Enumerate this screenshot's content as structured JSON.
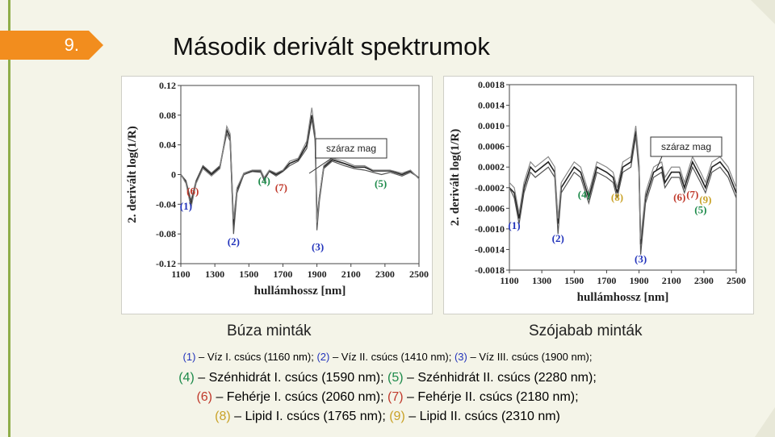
{
  "slide": {
    "number": "9.",
    "title": "Második derivált spektrumok"
  },
  "colors": {
    "accent_orange": "#f28d1e",
    "accent_green": "#8fae4a",
    "label_blue": "#2233bb",
    "label_green": "#1d8a4a",
    "label_red": "#c0392b",
    "label_gold": "#c9a227"
  },
  "captions": {
    "left": "Búza minták",
    "right": "Szójabab minták"
  },
  "legend": {
    "line1": [
      {
        "id": "(1)",
        "text": " – Víz I. csúcs (1160 nm); ",
        "color": "blue"
      },
      {
        "id": "(2)",
        "text": " – Víz II. csúcs (1410 nm); ",
        "color": "blue"
      },
      {
        "id": "(3)",
        "text": " – Víz III. csúcs (1900 nm);",
        "color": "blue"
      }
    ],
    "line2": [
      {
        "id": "(4)",
        "text": " – Szénhidrát I. csúcs (1590 nm); ",
        "color": "green"
      },
      {
        "id": "(5)",
        "text": " – Szénhidrát II. csúcs (2280 nm);",
        "color": "green"
      }
    ],
    "line3": [
      {
        "id": "(6)",
        "text": " – Fehérje I. csúcs (2060 nm); ",
        "color": "red"
      },
      {
        "id": "(7)",
        "text": " – Fehérje II. csúcs (2180 nm);",
        "color": "red"
      }
    ],
    "line4": [
      {
        "id": "(8)",
        "text": " – Lipid I. csúcs (1765 nm); ",
        "color": "gold"
      },
      {
        "id": "(9)",
        "text": " – Lipid II. csúcs (2310 nm)",
        "color": "gold"
      }
    ]
  },
  "chart_data": [
    {
      "type": "line",
      "ylabel": "2. derivált log(1/R)",
      "xlabel": "hullámhossz [nm]",
      "xlim": [
        1100,
        2500
      ],
      "ylim": [
        -0.12,
        0.12
      ],
      "xticks": [
        "1100",
        "1300",
        "1500",
        "1700",
        "1900",
        "2100",
        "2300",
        "2500"
      ],
      "yticks": [
        "0.12",
        "0.08",
        "0.04",
        "0",
        "-0.04",
        "-0.08",
        "-0.12"
      ],
      "annotation_box": "száraz mag",
      "x": [
        1100,
        1130,
        1160,
        1190,
        1230,
        1280,
        1330,
        1370,
        1390,
        1410,
        1430,
        1470,
        1520,
        1570,
        1590,
        1620,
        1660,
        1700,
        1740,
        1790,
        1840,
        1870,
        1890,
        1900,
        1915,
        1940,
        1990,
        2060,
        2120,
        2180,
        2230,
        2280,
        2330,
        2400,
        2450,
        2500
      ],
      "series": [
        {
          "values": [
            0,
            -0.01,
            -0.04,
            -0.01,
            0.01,
            0.0,
            0.01,
            0.06,
            0.05,
            -0.07,
            -0.02,
            0.0,
            0.005,
            0.005,
            -0.005,
            0.005,
            0.0,
            0.005,
            0.015,
            0.02,
            0.04,
            0.08,
            0.05,
            -0.06,
            -0.03,
            0.01,
            0.02,
            0.015,
            0.01,
            0.01,
            0.005,
            0.005,
            0.005,
            0.0,
            0.005,
            -0.005
          ]
        },
        {
          "values": [
            0,
            -0.008,
            -0.035,
            -0.008,
            0.012,
            0.002,
            0.012,
            0.055,
            0.045,
            -0.08,
            -0.025,
            0.0,
            0.004,
            0.003,
            -0.008,
            0.004,
            -0.002,
            0.004,
            0.012,
            0.018,
            0.035,
            0.075,
            0.045,
            -0.075,
            -0.035,
            0.008,
            0.018,
            0.012,
            0.008,
            0.006,
            0.003,
            0.0,
            0.003,
            -0.002,
            0.003,
            -0.004
          ]
        },
        {
          "values": [
            0,
            -0.012,
            -0.045,
            -0.012,
            0.008,
            -0.002,
            0.008,
            0.065,
            0.055,
            -0.06,
            -0.018,
            0.002,
            0.006,
            0.006,
            -0.004,
            0.006,
            0.002,
            0.006,
            0.018,
            0.022,
            0.045,
            0.09,
            0.055,
            -0.065,
            -0.028,
            0.012,
            0.022,
            0.018,
            0.012,
            0.012,
            0.006,
            0.006,
            0.006,
            0.002,
            0.006,
            -0.006
          ]
        }
      ],
      "peak_labels": [
        {
          "id": "(1)",
          "x": 1130,
          "y": -0.047,
          "color": "blue"
        },
        {
          "id": "(6)",
          "x": 1170,
          "y": -0.027,
          "color": "red"
        },
        {
          "id": "(2)",
          "x": 1410,
          "y": -0.095,
          "color": "blue"
        },
        {
          "id": "(4)",
          "x": 1590,
          "y": -0.013,
          "color": "green"
        },
        {
          "id": "(7)",
          "x": 1690,
          "y": -0.022,
          "color": "red"
        },
        {
          "id": "(3)",
          "x": 1905,
          "y": -0.102,
          "color": "blue"
        },
        {
          "id": "(5)",
          "x": 2275,
          "y": -0.017,
          "color": "green"
        }
      ]
    },
    {
      "type": "line",
      "ylabel": "2. derivált log(1/R)",
      "xlabel": "hullámhossz [nm]",
      "xlim": [
        1100,
        2500
      ],
      "ylim": [
        -0.0018,
        0.0018
      ],
      "xticks": [
        "1100",
        "1300",
        "1500",
        "1700",
        "1900",
        "2100",
        "2300",
        "2500"
      ],
      "yticks": [
        "0.0018",
        "0.0014",
        "0.0010",
        "0.0006",
        "0.0002",
        "-0.0002",
        "-0.0006",
        "-0.0010",
        "-0.0014",
        "-0.0018"
      ],
      "annotation_box": "száraz mag",
      "x": [
        1100,
        1130,
        1160,
        1190,
        1230,
        1260,
        1300,
        1340,
        1380,
        1400,
        1420,
        1460,
        1500,
        1540,
        1590,
        1640,
        1700,
        1740,
        1765,
        1800,
        1850,
        1880,
        1900,
        1910,
        1940,
        1990,
        2040,
        2060,
        2100,
        2150,
        2180,
        2230,
        2280,
        2310,
        2350,
        2400,
        2450,
        2500
      ],
      "series": [
        {
          "values": [
            -0.0002,
            -0.0003,
            -0.0008,
            -0.0002,
            0.0002,
            0.0001,
            0.0002,
            0.0003,
            0.0001,
            -0.0009,
            -0.0002,
            0.0,
            0.0002,
            0.0001,
            -0.0004,
            0.0002,
            0.0001,
            0.0,
            -0.0003,
            0.0002,
            0.0003,
            0.0009,
            0.0002,
            -0.0013,
            -0.0004,
            0.0001,
            0.0002,
            -0.0001,
            0.0001,
            0.0001,
            -0.0002,
            0.0003,
            0.0,
            -0.0002,
            0.0002,
            0.0003,
            0.0001,
            -0.0003
          ]
        },
        {
          "values": [
            -0.0002,
            -0.0004,
            -0.0009,
            -0.0003,
            0.0001,
            0.0,
            0.0001,
            0.0002,
            0.0,
            -0.0011,
            -0.0003,
            -0.0001,
            0.0001,
            0.0,
            -0.0005,
            0.0001,
            0.0,
            -0.0001,
            -0.0004,
            0.0001,
            0.0002,
            0.0008,
            0.0001,
            -0.0015,
            -0.0005,
            0.0,
            0.0001,
            -0.0002,
            0.0,
            0.0,
            -0.0003,
            0.0002,
            -0.0001,
            -0.0003,
            0.0001,
            0.0002,
            0.0,
            -0.0004
          ]
        },
        {
          "values": [
            -0.0001,
            -0.0002,
            -0.0007,
            -0.0001,
            0.0003,
            0.0002,
            0.0003,
            0.0004,
            0.0002,
            -0.0008,
            -0.0001,
            0.0001,
            0.0003,
            0.0002,
            -0.0003,
            0.0003,
            0.0002,
            0.0001,
            -0.0002,
            0.0003,
            0.0004,
            0.001,
            0.0003,
            -0.0012,
            -0.0003,
            0.0002,
            0.0003,
            0.0,
            0.0002,
            0.0002,
            -0.0001,
            0.0004,
            0.0001,
            -0.0001,
            0.0003,
            0.0004,
            0.0002,
            -0.0002
          ]
        }
      ],
      "peak_labels": [
        {
          "id": "(1)",
          "x": 1130,
          "y": -0.001,
          "color": "blue"
        },
        {
          "id": "(2)",
          "x": 1400,
          "y": -0.00125,
          "color": "blue"
        },
        {
          "id": "(4)",
          "x": 1560,
          "y": -0.0004,
          "color": "green"
        },
        {
          "id": "(8)",
          "x": 1765,
          "y": -0.00045,
          "color": "gold"
        },
        {
          "id": "(3)",
          "x": 1910,
          "y": -0.00165,
          "color": "blue"
        },
        {
          "id": "(6)",
          "x": 2150,
          "y": -0.00045,
          "color": "red"
        },
        {
          "id": "(7)",
          "x": 2230,
          "y": -0.0004,
          "color": "red"
        },
        {
          "id": "(9)",
          "x": 2310,
          "y": -0.0005,
          "color": "gold"
        },
        {
          "id": "(5)",
          "x": 2280,
          "y": -0.0007,
          "color": "green"
        }
      ]
    }
  ]
}
